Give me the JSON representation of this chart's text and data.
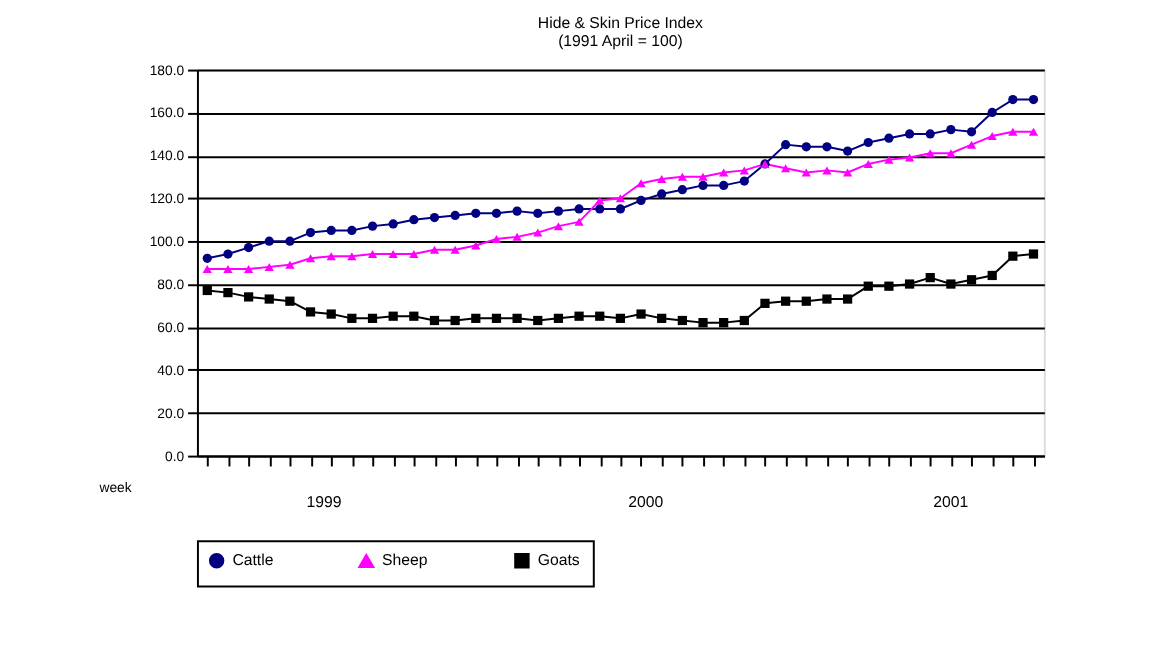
{
  "chart_data": {
    "type": "line",
    "title": "Hide & Skin Price Index",
    "subtitle": "(1991 April = 100)",
    "xlabel": "week",
    "categories": [
      null,
      null,
      null,
      null,
      null,
      null,
      null,
      null,
      null,
      null,
      null,
      null,
      null,
      null,
      null,
      null,
      null,
      null,
      null,
      null,
      null,
      null,
      null,
      null,
      null,
      null,
      null,
      null,
      null,
      null,
      null,
      null,
      null,
      null,
      null,
      null,
      null,
      null,
      null,
      null,
      null
    ],
    "series": [
      {
        "name": "Cattle",
        "color": "#000080",
        "marker": "circle",
        "values": [
          92,
          94,
          97,
          100,
          100,
          104,
          105,
          105,
          107,
          108,
          110,
          111,
          112,
          113,
          113,
          114,
          113,
          114,
          115,
          115,
          115,
          119,
          122,
          124,
          126,
          126,
          128,
          136,
          145,
          144,
          144,
          142,
          146,
          148,
          150,
          150,
          152,
          151,
          160,
          166,
          166
        ]
      },
      {
        "name": "Sheep",
        "color": "#ff00ff",
        "marker": "triangle",
        "values": [
          87,
          87,
          87,
          88,
          89,
          92,
          93,
          93,
          94,
          94,
          94,
          96,
          96,
          98,
          101,
          102,
          104,
          107,
          109,
          119,
          120,
          127,
          129,
          130,
          130,
          132,
          133,
          136,
          134,
          132,
          133,
          132,
          136,
          138,
          139,
          141,
          141,
          145,
          149,
          151,
          151
        ]
      },
      {
        "name": "Goats",
        "color": "#000000",
        "marker": "square",
        "values": [
          77,
          76,
          74,
          73,
          72,
          67,
          66,
          64,
          64,
          65,
          65,
          63,
          63,
          64,
          64,
          64,
          63,
          64,
          65,
          65,
          64,
          66,
          64,
          63,
          62,
          62,
          63,
          71,
          72,
          72,
          73,
          73,
          79,
          79,
          80,
          83,
          80,
          82,
          84,
          93,
          94
        ]
      }
    ],
    "ylim": [
      0,
      180
    ],
    "yticks": [
      {
        "value": 0,
        "label": "0.0"
      },
      {
        "value": 20,
        "label": "20.0"
      },
      {
        "value": 40,
        "label": "40.0"
      },
      {
        "value": 60,
        "label": "60.0"
      },
      {
        "value": 80,
        "label": "80.0"
      },
      {
        "value": 100,
        "label": "100.0"
      },
      {
        "value": 120,
        "label": "120.0"
      },
      {
        "value": 140,
        "label": "140.0"
      },
      {
        "value": 160,
        "label": "160.0"
      },
      {
        "value": 180,
        "label": "180.0"
      }
    ],
    "grid": "y",
    "legend": "bottom",
    "tick_labels": "y",
    "line_style": "solid",
    "annotations": [
      "1999",
      "2000",
      "2001"
    ]
  }
}
